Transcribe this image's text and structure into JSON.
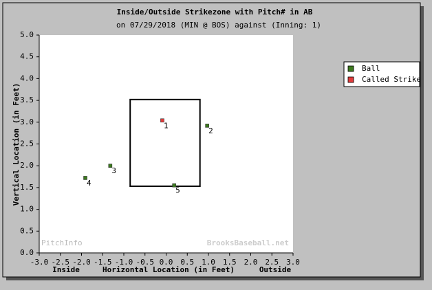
{
  "chart_data": {
    "type": "scatter",
    "title": "Inside/Outside Strikezone with Pitch# in AB",
    "subtitle": "on 07/29/2018 (MIN @ BOS) against  (Inning: 1)",
    "xlabel": "Horizontal Location (in Feet)",
    "ylabel": "Vertical Location (in Feet)",
    "x_side_labels": [
      "Inside",
      "Outside"
    ],
    "watermarks": [
      "PitchInfo",
      "BrooksBaseball.net"
    ],
    "xlim": [
      -3.0,
      3.0
    ],
    "ylim": [
      0.0,
      5.0
    ],
    "xticks": [
      {
        "value": -3,
        "label": "-3.0"
      },
      {
        "value": -2.5,
        "label": "-2.5"
      },
      {
        "value": -2,
        "label": "-2.0"
      },
      {
        "value": -1.5,
        "label": "-1.5"
      },
      {
        "value": -1,
        "label": "-1.0"
      },
      {
        "value": -0.5,
        "label": "-0.5"
      },
      {
        "value": 0,
        "label": "0.0"
      },
      {
        "value": 0.5,
        "label": "0.5"
      },
      {
        "value": 1,
        "label": "1.0"
      },
      {
        "value": 1.5,
        "label": "1.5"
      },
      {
        "value": 2,
        "label": "2.0"
      },
      {
        "value": 2.5,
        "label": "2.5"
      },
      {
        "value": 3,
        "label": "3.0"
      }
    ],
    "yticks": [
      {
        "value": 0,
        "label": "0.0"
      },
      {
        "value": 0.5,
        "label": "0.5"
      },
      {
        "value": 1,
        "label": "1.0"
      },
      {
        "value": 1.5,
        "label": "1.5"
      },
      {
        "value": 2,
        "label": "2.0"
      },
      {
        "value": 2.5,
        "label": "2.5"
      },
      {
        "value": 3,
        "label": "3.0"
      },
      {
        "value": 3.5,
        "label": "3.5"
      },
      {
        "value": 4,
        "label": "4.0"
      },
      {
        "value": 4.5,
        "label": "4.5"
      },
      {
        "value": 5,
        "label": "5.0"
      }
    ],
    "strike_zone": {
      "x": [
        -0.85,
        0.8
      ],
      "y": [
        1.53,
        3.52
      ]
    },
    "series": [
      {
        "name": "Ball",
        "color": "#3c7a1e",
        "x": [
          0.97,
          -1.32,
          -1.91,
          0.19
        ],
        "values": [
          2.92,
          2.0,
          1.72,
          1.55
        ],
        "point_labels": [
          "2",
          "3",
          "4",
          "5"
        ]
      },
      {
        "name": "Called Strike",
        "color": "#e23b3b",
        "x": [
          -0.09
        ],
        "values": [
          3.04
        ],
        "point_labels": [
          "1"
        ]
      }
    ],
    "grid": false,
    "legend_position": "right"
  }
}
